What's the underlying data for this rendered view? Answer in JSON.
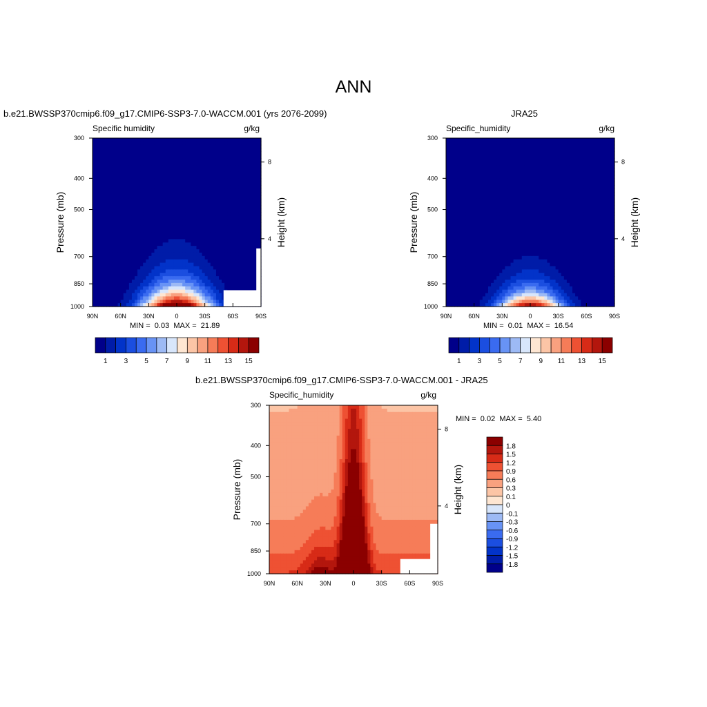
{
  "page": {
    "title": "ANN"
  },
  "colors": {
    "abs_levels": [
      "#00008a",
      "#001ca8",
      "#0233c9",
      "#1b4ee0",
      "#3a6bf0",
      "#6893f5",
      "#9dbaf5",
      "#d8e6fb",
      "#fee6d2",
      "#fcc5a6",
      "#f9a17f",
      "#f67c58",
      "#ee5133",
      "#d72b17",
      "#b3160d",
      "#8b0000"
    ],
    "diff_levels": [
      "#00008a",
      "#001ca8",
      "#0233c9",
      "#1b4ee0",
      "#3a6bf0",
      "#6893f5",
      "#9dbaf5",
      "#d8e6fb",
      "#fee6d2",
      "#fcc5a6",
      "#f9a17f",
      "#f67c58",
      "#ee5133",
      "#d72b17",
      "#b3160d",
      "#8b0000"
    ],
    "missing": "#ffffff"
  },
  "chart_data": [
    {
      "type": "heatmap",
      "title": "b.e21.BWSSP370cmip6.f09_g17.CMIP6-SSP3-7.0-WACCM.001 (yrs 2076-2099)",
      "left_label": "Specific humidity",
      "units": "g/kg",
      "ylabel": "Pressure (mb)",
      "ylabel_right": "Height (km)",
      "x_ticks": [
        "90N",
        "60N",
        "30N",
        "0",
        "30S",
        "60S",
        "90S"
      ],
      "y_ticks": [
        "300",
        "400",
        "500",
        "700",
        "850",
        "1000"
      ],
      "y_ticks_right": [
        "8",
        "4"
      ],
      "xlim": [
        90,
        -90
      ],
      "ylim": [
        1000,
        300
      ],
      "y_scale": "log",
      "min": 0.03,
      "max": 21.89,
      "min_label": "MIN =",
      "max_label": "MAX =",
      "min_text": "0.03",
      "max_text": "21.89",
      "field": {
        "sfc": 19.0,
        "width": 26,
        "hscale": 130,
        "asym": 0.0
      },
      "missing_region": {
        "lat": [
          -50,
          -90
        ],
        "p": [
          1000,
          890
        ]
      },
      "missing_strip": {
        "lat": [
          -85,
          -90
        ],
        "p": [
          1000,
          660
        ]
      },
      "colorbar": {
        "orientation": "horizontal",
        "labels": [
          "1",
          "3",
          "5",
          "7",
          "9",
          "11",
          "13",
          "15"
        ],
        "levels": [
          1,
          2,
          3,
          4,
          5,
          6,
          7,
          8,
          9,
          10,
          11,
          12,
          13,
          14,
          15
        ]
      }
    },
    {
      "type": "heatmap",
      "title": "JRA25",
      "left_label": "Specific_humidity",
      "units": "g/kg",
      "ylabel": "Pressure (mb)",
      "ylabel_right": "Height (km)",
      "x_ticks": [
        "90N",
        "60N",
        "30N",
        "0",
        "30S",
        "60S",
        "90S"
      ],
      "y_ticks": [
        "300",
        "400",
        "500",
        "700",
        "850",
        "1000"
      ],
      "y_ticks_right": [
        "8",
        "4"
      ],
      "xlim": [
        90,
        -90
      ],
      "ylim": [
        1000,
        300
      ],
      "y_scale": "log",
      "min": 0.01,
      "max": 16.54,
      "min_label": "MIN =",
      "max_label": "MAX =",
      "min_text": "0.01",
      "max_text": "16.54",
      "field": {
        "sfc": 16.0,
        "width": 24,
        "hscale": 110,
        "asym": 0.0
      },
      "colorbar": {
        "orientation": "horizontal",
        "labels": [
          "1",
          "3",
          "5",
          "7",
          "9",
          "11",
          "13",
          "15"
        ],
        "levels": [
          1,
          2,
          3,
          4,
          5,
          6,
          7,
          8,
          9,
          10,
          11,
          12,
          13,
          14,
          15
        ]
      }
    },
    {
      "type": "heatmap",
      "title": "b.e21.BWSSP370cmip6.f09_g17.CMIP6-SSP3-7.0-WACCM.001 - JRA25",
      "left_label": "Specific_humidity",
      "units": "g/kg",
      "ylabel": "Pressure (mb)",
      "ylabel_right": "Height (km)",
      "x_ticks": [
        "90N",
        "60N",
        "30N",
        "0",
        "30S",
        "60S",
        "90S"
      ],
      "y_ticks": [
        "300",
        "400",
        "500",
        "700",
        "850",
        "1000"
      ],
      "y_ticks_right": [
        "8",
        "4"
      ],
      "xlim": [
        90,
        -90
      ],
      "ylim": [
        1000,
        300
      ],
      "y_scale": "log",
      "min": 0.02,
      "max": 5.4,
      "min_label": "MIN =",
      "max_label": "MAX =",
      "min_text": "0.02",
      "max_text": "5.40",
      "field": {
        "sfc": 3.0,
        "width": 14,
        "hscale": 260,
        "asym": 0.0
      },
      "missing_region": {
        "lat": [
          -50,
          -90
        ],
        "p": [
          1000,
          900
        ]
      },
      "missing_strip": {
        "lat": [
          -82,
          -90
        ],
        "p": [
          1000,
          700
        ]
      },
      "colorbar": {
        "orientation": "vertical",
        "labels": [
          "1.8",
          "1.5",
          "1.2",
          "0.9",
          "0.6",
          "0.3",
          "0.1",
          "0",
          "-0.1",
          "-0.3",
          "-0.6",
          "-0.9",
          "-1.2",
          "-1.5",
          "-1.8"
        ],
        "levels": [
          -1.8,
          -1.5,
          -1.2,
          -0.9,
          -0.6,
          -0.3,
          -0.1,
          0,
          0.1,
          0.3,
          0.6,
          0.9,
          1.2,
          1.5,
          1.8
        ]
      }
    }
  ]
}
